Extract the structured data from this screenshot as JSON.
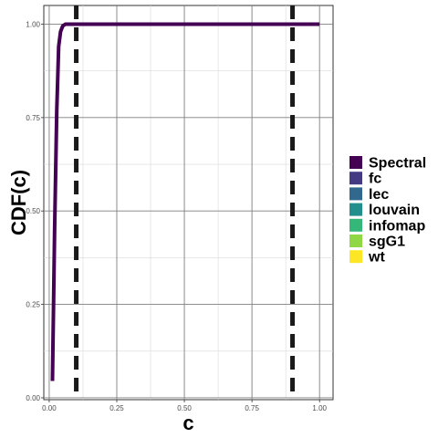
{
  "chart_data": {
    "type": "line",
    "title": "",
    "xlabel": "c",
    "ylabel": "CDF(c)",
    "xlim": [
      -0.02,
      1.05
    ],
    "ylim": [
      -0.005,
      1.05
    ],
    "x_ticks": [
      0.0,
      0.25,
      0.5,
      0.75,
      1.0
    ],
    "x_tick_labels": [
      "0.00",
      "0.25",
      "0.50",
      "0.75",
      "1.00"
    ],
    "y_ticks": [
      0.0,
      0.25,
      0.5,
      0.75,
      1.0
    ],
    "y_tick_labels": [
      "0.00",
      "0.25",
      "0.50",
      "0.75",
      "1.00"
    ],
    "grid": true,
    "legend_position": "right",
    "series": [
      {
        "name": "Spectral",
        "color": "#440154",
        "x": [
          0.012,
          0.02,
          0.028,
          0.035,
          0.042,
          0.05,
          0.06,
          0.1,
          1.0
        ],
        "y": [
          0.045,
          0.45,
          0.77,
          0.94,
          0.98,
          0.995,
          1.0,
          1.0,
          1.0
        ]
      }
    ],
    "legend": [
      {
        "name": "Spectral",
        "color": "#440154"
      },
      {
        "name": "fc",
        "color": "#443A83"
      },
      {
        "name": "lec",
        "color": "#31688E"
      },
      {
        "name": "louvain",
        "color": "#21908C"
      },
      {
        "name": "infomap",
        "color": "#35B779"
      },
      {
        "name": "sgG1",
        "color": "#8FD744"
      },
      {
        "name": "wt",
        "color": "#FDE725"
      }
    ],
    "vlines": [
      {
        "x": 0.1,
        "style": "dashed",
        "color": "#1a1a1a"
      },
      {
        "x": 0.9,
        "style": "dashed",
        "color": "#1a1a1a"
      }
    ]
  }
}
